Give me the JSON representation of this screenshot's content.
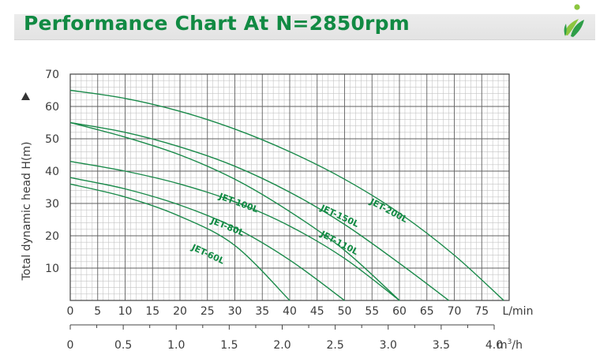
{
  "header": {
    "title": "Performance Chart At N=2850rpm"
  },
  "colors": {
    "brand": "#118a43",
    "curve": "#1a8a4a",
    "grid_major": "#606060",
    "grid_minor": "#c4c4c4"
  },
  "chart_data": {
    "type": "line",
    "title": "Performance Chart At N=2850rpm",
    "xlabel": "L/min",
    "x2label": "m³/h",
    "ylabel": "Total dynamic head H(m)",
    "xlim": [
      0,
      80
    ],
    "ylim": [
      0,
      70
    ],
    "x_ticks": [
      0,
      5,
      10,
      15,
      20,
      25,
      30,
      35,
      40,
      45,
      50,
      55,
      60,
      65,
      70,
      75
    ],
    "x2_ticks": [
      "0",
      "0.5",
      "1.0",
      "1.5",
      "2.0",
      "2.5",
      "3.0",
      "3.5",
      "4.0"
    ],
    "x2_unit": "m",
    "x2_sup": "3",
    "x2_suffix": "/h",
    "y_ticks": [
      10,
      20,
      30,
      40,
      50,
      60,
      70
    ],
    "grid": true,
    "series": [
      {
        "name": "JET-200L",
        "x": [
          0,
          10,
          20,
          30,
          40,
          50,
          60,
          70,
          79
        ],
        "y": [
          65,
          62.5,
          58.5,
          53,
          46,
          37.5,
          27,
          14,
          0
        ]
      },
      {
        "name": "JET-150L",
        "x": [
          0,
          10,
          20,
          30,
          40,
          50,
          60,
          69
        ],
        "y": [
          55,
          52,
          47.5,
          41.5,
          33.5,
          23.5,
          11.5,
          0
        ]
      },
      {
        "name": "JET-110L",
        "x": [
          0,
          10,
          20,
          30,
          40,
          50,
          60
        ],
        "y": [
          55,
          50.5,
          45,
          37.5,
          27.5,
          15.5,
          0
        ]
      },
      {
        "name": "JET-100L",
        "x": [
          0,
          10,
          20,
          30,
          40,
          50,
          60
        ],
        "y": [
          43,
          40,
          36,
          30.5,
          23,
          13,
          0
        ]
      },
      {
        "name": "JET-80L",
        "x": [
          0,
          10,
          20,
          30,
          40,
          50
        ],
        "y": [
          38,
          34.5,
          29.5,
          22.5,
          12.5,
          0
        ]
      },
      {
        "name": "JET-60L",
        "x": [
          0,
          10,
          20,
          30,
          40
        ],
        "y": [
          36,
          32,
          26,
          17,
          0
        ]
      }
    ]
  }
}
